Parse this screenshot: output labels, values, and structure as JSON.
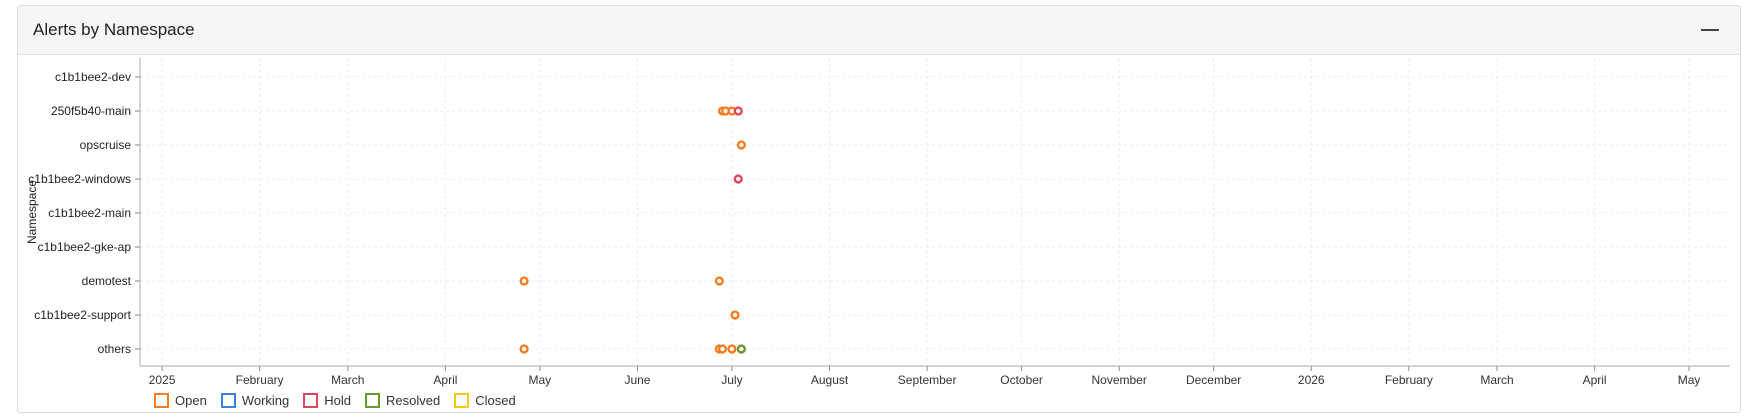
{
  "panel": {
    "title": "Alerts by Namespace",
    "collapse_icon": "minus-icon"
  },
  "chart_data": {
    "type": "scatter",
    "title": "",
    "xlabel": "",
    "ylabel": "Namespace",
    "grid": true,
    "legend_placement": "bottom-left",
    "x_range": [
      "2024-12-25",
      "2026-05-14"
    ],
    "x_ticks": [
      {
        "date": "2025-01-01",
        "label": "2025"
      },
      {
        "date": "2025-02-01",
        "label": "February"
      },
      {
        "date": "2025-03-01",
        "label": "March"
      },
      {
        "date": "2025-04-01",
        "label": "April"
      },
      {
        "date": "2025-05-01",
        "label": "May"
      },
      {
        "date": "2025-06-01",
        "label": "June"
      },
      {
        "date": "2025-07-01",
        "label": "July"
      },
      {
        "date": "2025-08-01",
        "label": "August"
      },
      {
        "date": "2025-09-01",
        "label": "September"
      },
      {
        "date": "2025-10-01",
        "label": "October"
      },
      {
        "date": "2025-11-01",
        "label": "November"
      },
      {
        "date": "2025-12-01",
        "label": "December"
      },
      {
        "date": "2026-01-01",
        "label": "2026"
      },
      {
        "date": "2026-02-01",
        "label": "February"
      },
      {
        "date": "2026-03-01",
        "label": "March"
      },
      {
        "date": "2026-04-01",
        "label": "April"
      },
      {
        "date": "2026-05-01",
        "label": "May"
      }
    ],
    "categories": [
      "c1b1bee2-dev",
      "250f5b40-main",
      "opscruise",
      "c1b1bee2-windows",
      "c1b1bee2-main",
      "c1b1bee2-gke-ap",
      "demotest",
      "c1b1bee2-support",
      "others"
    ],
    "series": [
      {
        "name": "Open",
        "color": "#f57c1f",
        "points": [
          {
            "x": "2025-06-28",
            "y": "250f5b40-main"
          },
          {
            "x": "2025-06-29",
            "y": "250f5b40-main"
          },
          {
            "x": "2025-07-01",
            "y": "250f5b40-main"
          },
          {
            "x": "2025-07-04",
            "y": "opscruise"
          },
          {
            "x": "2025-04-26",
            "y": "demotest"
          },
          {
            "x": "2025-06-27",
            "y": "demotest"
          },
          {
            "x": "2025-07-02",
            "y": "c1b1bee2-support"
          },
          {
            "x": "2025-04-26",
            "y": "others"
          },
          {
            "x": "2025-06-27",
            "y": "others"
          },
          {
            "x": "2025-06-28",
            "y": "others"
          },
          {
            "x": "2025-07-01",
            "y": "others"
          },
          {
            "x": "2025-07-04",
            "y": "others"
          }
        ]
      },
      {
        "name": "Working",
        "color": "#3a7ee0",
        "points": []
      },
      {
        "name": "Hold",
        "color": "#e0455a",
        "points": [
          {
            "x": "2025-07-03",
            "y": "250f5b40-main"
          },
          {
            "x": "2025-07-03",
            "y": "c1b1bee2-windows"
          }
        ]
      },
      {
        "name": "Resolved",
        "color": "#6a9a2c",
        "points": [
          {
            "x": "2025-07-04",
            "y": "others"
          }
        ]
      },
      {
        "name": "Closed",
        "color": "#f5c518",
        "points": []
      }
    ]
  }
}
